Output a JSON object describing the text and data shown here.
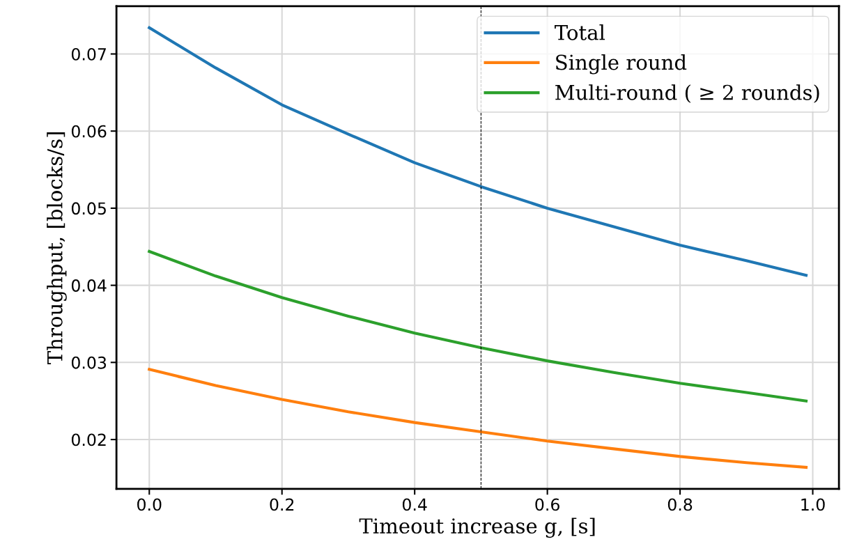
{
  "chart_data": {
    "type": "line",
    "xlabel": "Timeout increase g, [s]",
    "ylabel": "Throughput, [blocks/s]",
    "x": [
      0,
      0.1,
      0.2,
      0.3,
      0.4,
      0.5,
      0.6,
      0.7,
      0.8,
      0.9,
      0.99
    ],
    "series": [
      {
        "name": "Total",
        "color": "#1f77b4",
        "values": [
          0.0734,
          0.0682,
          0.0634,
          0.0596,
          0.0559,
          0.0528,
          0.05,
          0.0476,
          0.0452,
          0.0432,
          0.0413
        ]
      },
      {
        "name": "Single round",
        "color": "#ff7f0e",
        "values": [
          0.0291,
          0.027,
          0.0252,
          0.0236,
          0.0222,
          0.021,
          0.0198,
          0.0188,
          0.0178,
          0.017,
          0.0164
        ]
      },
      {
        "name": "Multi-round ( ≥ 2 rounds)",
        "color": "#2ca02c",
        "values": [
          0.0444,
          0.0412,
          0.0384,
          0.036,
          0.0338,
          0.0319,
          0.0302,
          0.0287,
          0.0273,
          0.0261,
          0.025
        ]
      }
    ],
    "xlim": [
      -0.0495,
      1.0395
    ],
    "xticks": [
      {
        "value": 0,
        "label": "0.0"
      },
      0.2,
      0.4,
      0.6,
      0.8,
      {
        "value": 1,
        "label": "1.0"
      }
    ],
    "ylim": [
      0.0136,
      0.0762
    ],
    "yticks": [
      0.02,
      0.03,
      0.04,
      0.05,
      0.06,
      0.07
    ],
    "ref_lines": [
      {
        "axis": "x",
        "value": 0.5,
        "color": "#000000",
        "line_style": "dashed"
      }
    ],
    "grid": true,
    "legend": "top right",
    "line_style": "solid",
    "marker": "none"
  }
}
